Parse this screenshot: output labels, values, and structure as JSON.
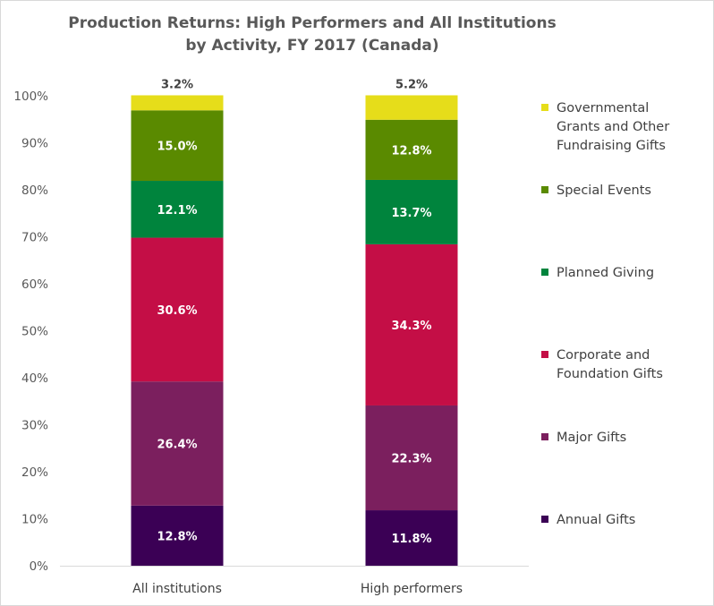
{
  "chart_data": {
    "type": "bar",
    "stacked": true,
    "title_lines": [
      "Production Returns: High Performers and All Institutions",
      "by Activity, FY 2017 (Canada)"
    ],
    "categories": [
      "All institutions",
      "High performers"
    ],
    "ylim": [
      0,
      100
    ],
    "yticks": [
      "0%",
      "10%",
      "20%",
      "30%",
      "40%",
      "50%",
      "60%",
      "70%",
      "80%",
      "90%",
      "100%"
    ],
    "grid": false,
    "legend_position": "right",
    "series": [
      {
        "name": "Annual Gifts",
        "legend_lines": [
          "Annual Gifts"
        ],
        "color": "#3b0055",
        "values": [
          12.8,
          11.8
        ],
        "labels": [
          "12.8%",
          "11.8%"
        ]
      },
      {
        "name": "Major Gifts",
        "legend_lines": [
          "Major Gifts"
        ],
        "color": "#7b1f5e",
        "values": [
          26.4,
          22.3
        ],
        "labels": [
          "26.4%",
          "22.3%"
        ]
      },
      {
        "name": "Corporate and Foundation Gifts",
        "legend_lines": [
          "Corporate and",
          "Foundation Gifts"
        ],
        "color": "#c40e46",
        "values": [
          30.6,
          34.3
        ],
        "labels": [
          "30.6%",
          "34.3%"
        ]
      },
      {
        "name": "Planned Giving",
        "legend_lines": [
          "Planned Giving"
        ],
        "color": "#00843d",
        "values": [
          12.1,
          13.7
        ],
        "labels": [
          "12.1%",
          "13.7%"
        ]
      },
      {
        "name": "Special Events",
        "legend_lines": [
          "Special Events"
        ],
        "color": "#5a8a00",
        "values": [
          15.0,
          12.8
        ],
        "labels": [
          "15.0%",
          "12.8%"
        ]
      },
      {
        "name": "Governmental Grants and Other Fundraising Gifts",
        "legend_lines": [
          "Governmental",
          "Grants and Other",
          "Fundraising Gifts"
        ],
        "color": "#e6dd1a",
        "values": [
          3.2,
          5.2
        ],
        "labels": [
          "3.2%",
          "5.2%"
        ],
        "label_outside": true
      }
    ]
  }
}
